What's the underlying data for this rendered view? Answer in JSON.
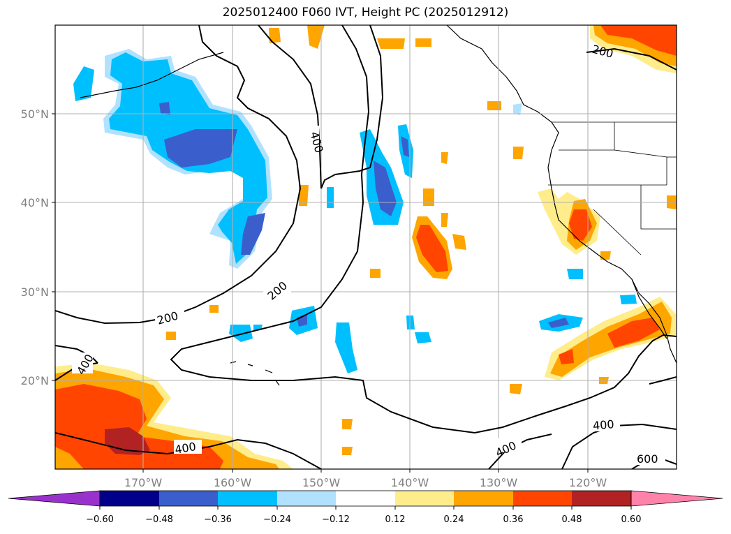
{
  "title": "2025012400 F060 IVT, Height PC (2025012912)",
  "map": {
    "lon_ticks": [
      "170°W",
      "160°W",
      "150°W",
      "140°W",
      "130°W",
      "120°W"
    ],
    "lat_ticks": [
      "50°N",
      "40°N",
      "30°N",
      "20°N"
    ],
    "contour_labels": [
      "200",
      "400",
      "200",
      "200",
      "400",
      "400",
      "400",
      "400",
      "600"
    ]
  },
  "colorbar": {
    "ticks": [
      "−0.60",
      "−0.48",
      "−0.36",
      "−0.24",
      "−0.12",
      "0.12",
      "0.24",
      "0.36",
      "0.48",
      "0.60"
    ],
    "colors": [
      "#9932cc",
      "#00008b",
      "#3a5fcd",
      "#00bfff",
      "#b0e2ff",
      "#ffffff",
      "#ffec8b",
      "#ffa500",
      "#ff4500",
      "#b22222",
      "#ff82ab"
    ]
  },
  "legend_colors": {
    "neg_extreme": "#9932cc",
    "neg_strong": "#3a5fcd",
    "neg_mid": "#00bfff",
    "neg_weak": "#b0e2ff",
    "pos_weak": "#ffec8b",
    "pos_mid": "#ffa500",
    "pos_strong": "#ff4500",
    "pos_extreme": "#b22222"
  }
}
